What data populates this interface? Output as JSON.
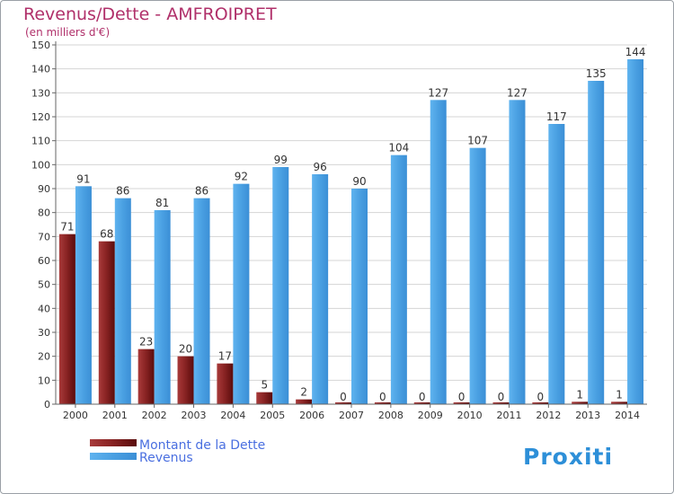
{
  "chart_data": {
    "type": "bar",
    "title": "Revenus/Dette - AMFROIPRET",
    "subtitle": "(en milliers d'€)",
    "categories": [
      "2000",
      "2001",
      "2002",
      "2003",
      "2004",
      "2005",
      "2006",
      "2007",
      "2008",
      "2009",
      "2010",
      "2011",
      "2012",
      "2013",
      "2014"
    ],
    "series": [
      {
        "name": "Montant de la Dette",
        "values": [
          71,
          68,
          23,
          20,
          17,
          5,
          2,
          0,
          0,
          0,
          0,
          0,
          0,
          1,
          1
        ]
      },
      {
        "name": "Revenus",
        "values": [
          91,
          86,
          81,
          86,
          92,
          99,
          96,
          90,
          104,
          127,
          107,
          127,
          117,
          135,
          144
        ]
      }
    ],
    "ylim": [
      0,
      150
    ],
    "ytick_step": 10,
    "grid": true,
    "legend_position": "bottom-left",
    "colors": {
      "debt": "#7a1c1c",
      "revenue": "#4a9fe0",
      "title": "#b0306a",
      "legend_text": "#4a6fe0"
    }
  },
  "brand": {
    "logo_text": "Proxiti"
  }
}
